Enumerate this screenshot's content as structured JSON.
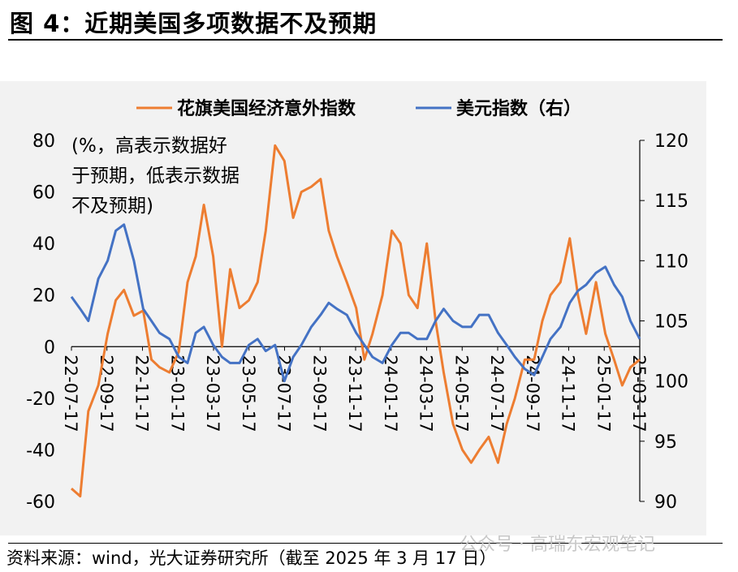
{
  "title": "图 4：近期美国多项数据不及预期",
  "source": "资料来源：wind，光大证券研究所（截至 2025 年 3 月 17 日）",
  "watermark": "公众号 · 高瑞东宏观笔记",
  "chart_data": {
    "type": "line",
    "title": "",
    "annotation": "(%，高表示数据好于预期，低表示数据不及预期)",
    "legend_placement": "top",
    "x_tick_labels": [
      "22-07-17",
      "22-09-17",
      "22-11-17",
      "23-01-17",
      "23-03-17",
      "23-05-17",
      "23-07-17",
      "23-09-17",
      "23-11-17",
      "24-01-17",
      "24-03-17",
      "24-05-17",
      "24-07-17",
      "24-09-17",
      "24-11-17",
      "25-01-17",
      "25-03-17"
    ],
    "y_left": {
      "min": -60,
      "max": 80,
      "ticks": [
        -60,
        -40,
        -20,
        0,
        20,
        40,
        60,
        80
      ]
    },
    "y_right": {
      "min": 90,
      "max": 120,
      "ticks": [
        90,
        95,
        100,
        105,
        110,
        115,
        120
      ]
    },
    "series": [
      {
        "name": "花旗美国经济意外指数",
        "axis": "left",
        "color": "#ed7d31",
        "x": [
          "2022-07-17",
          "2022-08-01",
          "2022-08-15",
          "2022-09-01",
          "2022-09-17",
          "2022-10-01",
          "2022-10-15",
          "2022-11-01",
          "2022-11-17",
          "2022-12-01",
          "2022-12-15",
          "2023-01-01",
          "2023-01-17",
          "2023-02-01",
          "2023-02-15",
          "2023-03-01",
          "2023-03-17",
          "2023-04-01",
          "2023-04-15",
          "2023-05-01",
          "2023-05-17",
          "2023-06-01",
          "2023-06-15",
          "2023-07-01",
          "2023-07-17",
          "2023-08-01",
          "2023-08-15",
          "2023-09-01",
          "2023-09-17",
          "2023-10-01",
          "2023-10-15",
          "2023-11-01",
          "2023-11-17",
          "2023-12-01",
          "2023-12-15",
          "2024-01-01",
          "2024-01-17",
          "2024-02-01",
          "2024-02-15",
          "2024-03-01",
          "2024-03-17",
          "2024-04-01",
          "2024-04-15",
          "2024-05-01",
          "2024-05-17",
          "2024-06-01",
          "2024-06-15",
          "2024-07-01",
          "2024-07-17",
          "2024-08-01",
          "2024-08-15",
          "2024-09-01",
          "2024-09-17",
          "2024-10-01",
          "2024-10-15",
          "2024-11-01",
          "2024-11-17",
          "2024-12-01",
          "2024-12-15",
          "2025-01-01",
          "2025-01-17",
          "2025-02-01",
          "2025-02-15",
          "2025-03-01",
          "2025-03-17"
        ],
        "values": [
          -55,
          -58,
          -25,
          -15,
          5,
          18,
          22,
          12,
          14,
          -5,
          -8,
          -10,
          -2,
          25,
          35,
          55,
          35,
          0,
          30,
          15,
          18,
          25,
          45,
          78,
          72,
          50,
          60,
          62,
          65,
          45,
          35,
          25,
          15,
          -5,
          5,
          20,
          45,
          40,
          20,
          15,
          40,
          10,
          -10,
          -30,
          -40,
          -45,
          -40,
          -35,
          -45,
          -30,
          -20,
          -5,
          -5,
          10,
          20,
          25,
          42,
          20,
          5,
          25,
          5,
          -5,
          -15,
          -8,
          -5
        ]
      },
      {
        "name": "美元指数（右）",
        "axis": "right",
        "color": "#4472c4",
        "x": [
          "2022-07-17",
          "2022-08-01",
          "2022-08-15",
          "2022-09-01",
          "2022-09-17",
          "2022-10-01",
          "2022-10-15",
          "2022-11-01",
          "2022-11-17",
          "2022-12-01",
          "2022-12-15",
          "2023-01-01",
          "2023-01-17",
          "2023-02-01",
          "2023-02-15",
          "2023-03-01",
          "2023-03-17",
          "2023-04-01",
          "2023-04-15",
          "2023-05-01",
          "2023-05-17",
          "2023-06-01",
          "2023-06-15",
          "2023-07-01",
          "2023-07-17",
          "2023-08-01",
          "2023-08-15",
          "2023-09-01",
          "2023-09-17",
          "2023-10-01",
          "2023-10-15",
          "2023-11-01",
          "2023-11-17",
          "2023-12-01",
          "2023-12-15",
          "2024-01-01",
          "2024-01-17",
          "2024-02-01",
          "2024-02-15",
          "2024-03-01",
          "2024-03-17",
          "2024-04-01",
          "2024-04-15",
          "2024-05-01",
          "2024-05-17",
          "2024-06-01",
          "2024-06-15",
          "2024-07-01",
          "2024-07-17",
          "2024-08-01",
          "2024-08-15",
          "2024-09-01",
          "2024-09-17",
          "2024-10-01",
          "2024-10-15",
          "2024-11-01",
          "2024-11-17",
          "2024-12-01",
          "2024-12-15",
          "2025-01-01",
          "2025-01-17",
          "2025-02-01",
          "2025-02-15",
          "2025-03-01",
          "2025-03-17"
        ],
        "values": [
          107,
          106,
          105,
          108.5,
          110,
          112.5,
          113,
          110,
          106,
          105,
          104,
          103.5,
          102,
          101.5,
          104,
          104.5,
          103,
          102,
          101.5,
          101.5,
          103,
          103.5,
          102.5,
          103,
          100,
          102,
          103,
          104.5,
          105.5,
          106.5,
          106,
          105.5,
          104,
          103,
          102,
          101.5,
          103,
          104,
          104,
          103.5,
          103.5,
          105,
          106,
          105,
          104.5,
          104.5,
          105.5,
          105.5,
          104,
          103,
          102,
          101,
          100.5,
          102,
          103.5,
          104.5,
          106.5,
          107.5,
          108,
          109,
          109.5,
          108,
          107,
          105,
          103.5
        ]
      }
    ]
  }
}
